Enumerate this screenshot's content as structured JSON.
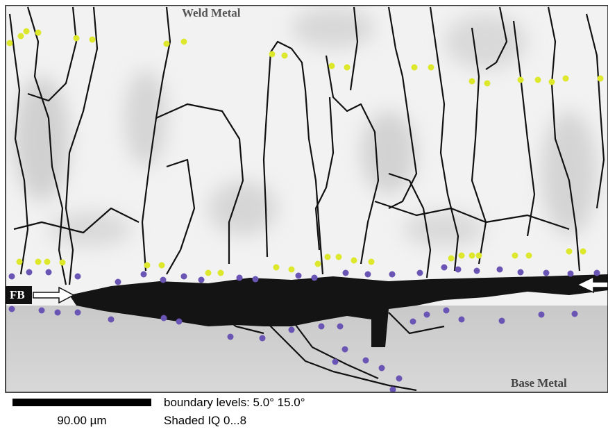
{
  "labels": {
    "weld_metal": "Weld Metal",
    "fb": "FB",
    "base_metal": "Base Metal"
  },
  "scale_bar": {
    "label": "90.00 µm"
  },
  "legend": {
    "boundary_levels": "boundary levels: 5.0° 15.0°",
    "shading": "Shaded IQ 0...8"
  }
}
